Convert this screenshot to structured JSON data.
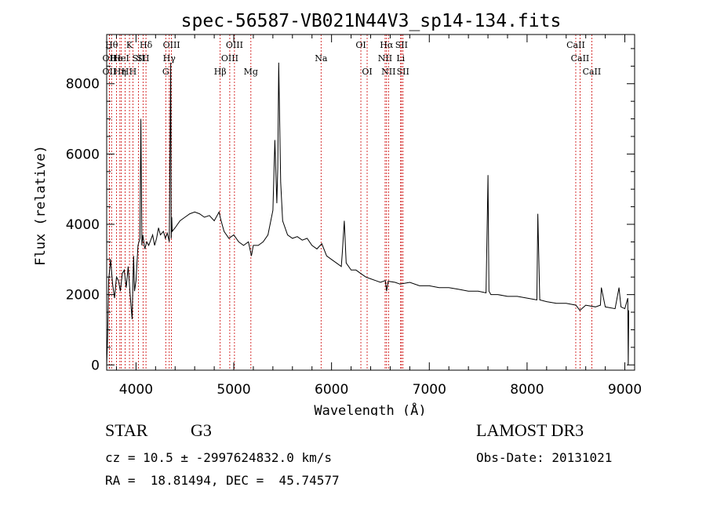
{
  "chart_data": {
    "type": "line",
    "title": "spec-56587-VB021N44V3_sp14-134.fits",
    "xlabel": "Wavelength (Å)",
    "ylabel": "Flux (relative)",
    "xlim": [
      3700,
      9100
    ],
    "ylim": [
      -150,
      9400
    ],
    "x_ticks": [
      4000,
      5000,
      6000,
      7000,
      8000,
      9000
    ],
    "x_tick_labels": [
      "4000",
      "5000",
      "6000",
      "7000",
      "8000",
      "9000"
    ],
    "y_ticks": [
      0,
      2000,
      4000,
      6000,
      8000
    ],
    "y_tick_labels": [
      "0",
      "2000",
      "4000",
      "6000",
      "8000"
    ],
    "grid": false,
    "series": [
      {
        "name": "flux",
        "x": [
          3700,
          3710,
          3720,
          3740,
          3760,
          3780,
          3800,
          3820,
          3840,
          3860,
          3880,
          3900,
          3920,
          3940,
          3960,
          3975,
          3985,
          4000,
          4020,
          4040,
          4050,
          4060,
          4070,
          4090,
          4110,
          4130,
          4150,
          4170,
          4190,
          4210,
          4230,
          4250,
          4280,
          4300,
          4320,
          4340,
          4355,
          4360,
          4365,
          4370,
          4400,
          4450,
          4500,
          4550,
          4600,
          4650,
          4700,
          4750,
          4800,
          4850,
          4861,
          4880,
          4900,
          4950,
          5000,
          5050,
          5100,
          5150,
          5180,
          5200,
          5250,
          5300,
          5350,
          5400,
          5420,
          5440,
          5450,
          5460,
          5480,
          5500,
          5550,
          5600,
          5650,
          5700,
          5750,
          5800,
          5850,
          5900,
          5950,
          6000,
          6050,
          6100,
          6110,
          6130,
          6150,
          6200,
          6250,
          6300,
          6350,
          6400,
          6450,
          6500,
          6550,
          6563,
          6580,
          6650,
          6700,
          6800,
          6900,
          7000,
          7100,
          7200,
          7300,
          7400,
          7500,
          7580,
          7600,
          7610,
          7630,
          7700,
          7800,
          7900,
          8000,
          8100,
          8110,
          8130,
          8200,
          8300,
          8400,
          8500,
          8540,
          8600,
          8700,
          8750,
          8760,
          8800,
          8900,
          8940,
          8960,
          9000,
          9030,
          9035,
          9040
        ],
        "values": [
          0,
          800,
          2400,
          3000,
          2300,
          1900,
          2500,
          2400,
          2100,
          2600,
          2700,
          2200,
          2800,
          2000,
          1300,
          3100,
          2100,
          2400,
          3400,
          3600,
          7000,
          3400,
          3700,
          3300,
          3500,
          3400,
          3550,
          3700,
          3400,
          3600,
          3900,
          3700,
          3800,
          3600,
          3750,
          3500,
          8600,
          3600,
          4200,
          3800,
          3900,
          4100,
          4200,
          4300,
          4350,
          4300,
          4200,
          4250,
          4100,
          4350,
          4200,
          4000,
          3800,
          3600,
          3700,
          3500,
          3400,
          3500,
          3100,
          3400,
          3400,
          3500,
          3700,
          4400,
          6400,
          4600,
          5600,
          8600,
          5200,
          4100,
          3700,
          3600,
          3650,
          3550,
          3600,
          3400,
          3300,
          3450,
          3100,
          3000,
          2900,
          2800,
          3200,
          4100,
          2900,
          2700,
          2700,
          2600,
          2500,
          2450,
          2400,
          2350,
          2400,
          2100,
          2380,
          2350,
          2300,
          2350,
          2250,
          2250,
          2200,
          2200,
          2150,
          2100,
          2100,
          2050,
          5400,
          2100,
          2000,
          2000,
          1950,
          1950,
          1900,
          1850,
          4300,
          1850,
          1800,
          1750,
          1750,
          1700,
          1550,
          1700,
          1650,
          1700,
          2200,
          1650,
          1600,
          2200,
          1650,
          1600,
          1900,
          0,
          1550
        ]
      }
    ],
    "line_markers": [
      {
        "wl": 3750,
        "label": "Hθ",
        "row": 1
      },
      {
        "wl": 3727,
        "label": "OII",
        "row": 2
      },
      {
        "wl": 3727,
        "label": "OII",
        "row": 3
      },
      {
        "wl": 3800,
        "label": "He",
        "row": 2
      },
      {
        "wl": 3835,
        "label": "Hη",
        "row": 3
      },
      {
        "wl": 3850,
        "label": "HeI",
        "row": 2
      },
      {
        "wl": 3889,
        "label": "H",
        "row": 3
      },
      {
        "wl": 3933,
        "label": "K",
        "row": 1
      },
      {
        "wl": 3968,
        "label": "H",
        "row": 3
      },
      {
        "wl": 4026,
        "label": "SII",
        "row": 2
      },
      {
        "wl": 4072,
        "label": "SII",
        "row": 2
      },
      {
        "wl": 4102,
        "label": "Hδ",
        "row": 1
      },
      {
        "wl": 4304,
        "label": "G",
        "row": 3
      },
      {
        "wl": 4340,
        "label": "Hγ",
        "row": 2
      },
      {
        "wl": 4363,
        "label": "OIII",
        "row": 1
      },
      {
        "wl": 4861,
        "label": "Hβ",
        "row": 3
      },
      {
        "wl": 4959,
        "label": "OIII",
        "row": 2
      },
      {
        "wl": 5007,
        "label": "OIII",
        "row": 1
      },
      {
        "wl": 5175,
        "label": "Mg",
        "row": 3
      },
      {
        "wl": 5893,
        "label": "Na",
        "row": 2
      },
      {
        "wl": 6300,
        "label": "OI",
        "row": 1
      },
      {
        "wl": 6364,
        "label": "OI",
        "row": 3
      },
      {
        "wl": 6548,
        "label": "NII",
        "row": 2
      },
      {
        "wl": 6563,
        "label": "Hα",
        "row": 1
      },
      {
        "wl": 6583,
        "label": "NII",
        "row": 3
      },
      {
        "wl": 6707,
        "label": "Li",
        "row": 2
      },
      {
        "wl": 6716,
        "label": "SII",
        "row": 1
      },
      {
        "wl": 6731,
        "label": "SII",
        "row": 3
      },
      {
        "wl": 8498,
        "label": "CaII",
        "row": 1
      },
      {
        "wl": 8542,
        "label": "CaII",
        "row": 2
      },
      {
        "wl": 8662,
        "label": "CaII",
        "row": 3
      }
    ]
  },
  "info": {
    "object_class": "STAR",
    "subclass": "G3",
    "survey": "LAMOST DR3",
    "redshift": "cz = 10.5 ± -2997624832.0 km/s",
    "obs_date": "Obs-Date: 20131021",
    "radec": "RA =  18.81494, DEC =  45.74577"
  },
  "colors": {
    "axis": "#000000",
    "flux_line": "#000000",
    "marker_line": "#cc0000",
    "background": "#ffffff"
  }
}
